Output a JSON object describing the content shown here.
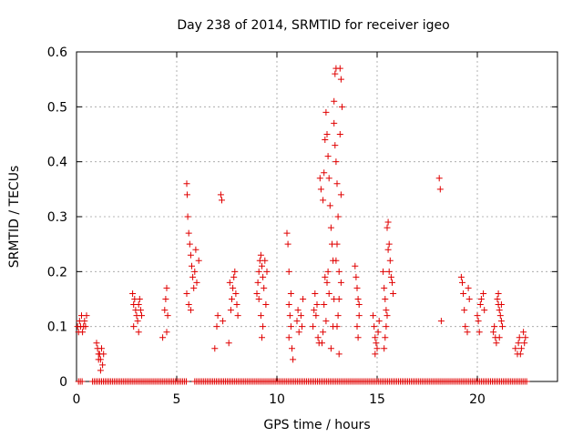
{
  "chart_data": {
    "type": "scatter",
    "title": "Day 238 of 2014, SRMTID for receiver igeo",
    "xlabel": "GPS time / hours",
    "ylabel": "SRMTID / TECUs",
    "xlim": [
      0,
      24
    ],
    "ylim": [
      0,
      0.6
    ],
    "xticks": [
      0,
      5,
      10,
      15,
      20
    ],
    "yticks": [
      0,
      0.1,
      0.2,
      0.3,
      0.4,
      0.5,
      0.6
    ],
    "xtick_labels": [
      "0",
      "5",
      "10",
      "15",
      "20"
    ],
    "ytick_labels": [
      "0",
      "0.1",
      "0.2",
      "0.3",
      "0.4",
      "0.5",
      "0.6"
    ],
    "grid": true,
    "marker": "plus",
    "color": "#e00000",
    "series": [
      {
        "name": "SRMTID",
        "points": [
          [
            0.05,
            0.1
          ],
          [
            0.1,
            0.09
          ],
          [
            0.15,
            0.11
          ],
          [
            0.2,
            0.1
          ],
          [
            0.25,
            0.12
          ],
          [
            0.3,
            0.09
          ],
          [
            0.35,
            0.1
          ],
          [
            0.4,
            0.11
          ],
          [
            0.45,
            0.1
          ],
          [
            0.5,
            0.12
          ],
          [
            1.0,
            0.07
          ],
          [
            1.05,
            0.06
          ],
          [
            1.1,
            0.05
          ],
          [
            1.15,
            0.05
          ],
          [
            1.2,
            0.04
          ],
          [
            1.25,
            0.06
          ],
          [
            1.3,
            0.03
          ],
          [
            1.35,
            0.05
          ],
          [
            1.2,
            0.02
          ],
          [
            1.1,
            0.04
          ],
          [
            2.8,
            0.16
          ],
          [
            2.85,
            0.14
          ],
          [
            2.9,
            0.15
          ],
          [
            2.95,
            0.13
          ],
          [
            3.0,
            0.12
          ],
          [
            3.05,
            0.11
          ],
          [
            3.1,
            0.14
          ],
          [
            3.15,
            0.15
          ],
          [
            3.2,
            0.13
          ],
          [
            3.25,
            0.12
          ],
          [
            2.85,
            0.1
          ],
          [
            3.1,
            0.09
          ],
          [
            4.3,
            0.08
          ],
          [
            4.4,
            0.13
          ],
          [
            4.45,
            0.15
          ],
          [
            4.5,
            0.17
          ],
          [
            4.5,
            0.09
          ],
          [
            4.55,
            0.12
          ],
          [
            5.5,
            0.36
          ],
          [
            5.52,
            0.34
          ],
          [
            5.55,
            0.3
          ],
          [
            5.6,
            0.27
          ],
          [
            5.65,
            0.25
          ],
          [
            5.7,
            0.23
          ],
          [
            5.75,
            0.21
          ],
          [
            5.8,
            0.19
          ],
          [
            5.85,
            0.17
          ],
          [
            5.6,
            0.14
          ],
          [
            5.7,
            0.13
          ],
          [
            5.5,
            0.16
          ],
          [
            5.9,
            0.2
          ],
          [
            6.0,
            0.18
          ],
          [
            6.1,
            0.22
          ],
          [
            5.95,
            0.24
          ],
          [
            6.9,
            0.06
          ],
          [
            7.0,
            0.1
          ],
          [
            7.05,
            0.12
          ],
          [
            7.2,
            0.34
          ],
          [
            7.25,
            0.33
          ],
          [
            7.3,
            0.11
          ],
          [
            7.6,
            0.07
          ],
          [
            7.7,
            0.13
          ],
          [
            7.75,
            0.15
          ],
          [
            7.8,
            0.17
          ],
          [
            7.85,
            0.19
          ],
          [
            7.9,
            0.2
          ],
          [
            7.95,
            0.16
          ],
          [
            8.0,
            0.14
          ],
          [
            8.05,
            0.12
          ],
          [
            7.65,
            0.18
          ],
          [
            9.0,
            0.16
          ],
          [
            9.05,
            0.18
          ],
          [
            9.1,
            0.2
          ],
          [
            9.15,
            0.22
          ],
          [
            9.2,
            0.23
          ],
          [
            9.25,
            0.21
          ],
          [
            9.3,
            0.19
          ],
          [
            9.35,
            0.17
          ],
          [
            9.4,
            0.22
          ],
          [
            9.45,
            0.14
          ],
          [
            9.3,
            0.1
          ],
          [
            9.25,
            0.08
          ],
          [
            9.2,
            0.12
          ],
          [
            9.1,
            0.15
          ],
          [
            9.5,
            0.2
          ],
          [
            10.5,
            0.27
          ],
          [
            10.55,
            0.25
          ],
          [
            10.6,
            0.2
          ],
          [
            10.6,
            0.14
          ],
          [
            10.65,
            0.12
          ],
          [
            10.7,
            0.1
          ],
          [
            10.75,
            0.06
          ],
          [
            10.8,
            0.04
          ],
          [
            10.6,
            0.08
          ],
          [
            10.7,
            0.16
          ],
          [
            11.0,
            0.11
          ],
          [
            11.05,
            0.13
          ],
          [
            11.1,
            0.09
          ],
          [
            11.2,
            0.12
          ],
          [
            11.25,
            0.1
          ],
          [
            11.3,
            0.15
          ],
          [
            11.8,
            0.1
          ],
          [
            11.85,
            0.13
          ],
          [
            11.9,
            0.16
          ],
          [
            11.95,
            0.12
          ],
          [
            12.0,
            0.14
          ],
          [
            12.05,
            0.08
          ],
          [
            12.1,
            0.07
          ],
          [
            12.15,
            0.37
          ],
          [
            12.2,
            0.35
          ],
          [
            12.3,
            0.33
          ],
          [
            12.35,
            0.38
          ],
          [
            12.4,
            0.44
          ],
          [
            12.45,
            0.49
          ],
          [
            12.5,
            0.45
          ],
          [
            12.55,
            0.41
          ],
          [
            12.6,
            0.37
          ],
          [
            12.65,
            0.32
          ],
          [
            12.7,
            0.28
          ],
          [
            12.75,
            0.25
          ],
          [
            12.8,
            0.22
          ],
          [
            12.55,
            0.2
          ],
          [
            12.5,
            0.18
          ],
          [
            12.6,
            0.16
          ],
          [
            12.4,
            0.19
          ],
          [
            12.35,
            0.14
          ],
          [
            12.45,
            0.11
          ],
          [
            12.3,
            0.09
          ],
          [
            12.25,
            0.07
          ],
          [
            12.7,
            0.06
          ],
          [
            12.8,
            0.1
          ],
          [
            12.85,
            0.15
          ],
          [
            12.85,
            0.51
          ],
          [
            12.9,
            0.56
          ],
          [
            12.95,
            0.57
          ],
          [
            12.85,
            0.47
          ],
          [
            12.9,
            0.43
          ],
          [
            12.95,
            0.4
          ],
          [
            13.0,
            0.36
          ],
          [
            13.05,
            0.3
          ],
          [
            13.0,
            0.25
          ],
          [
            12.95,
            0.22
          ],
          [
            13.1,
            0.2
          ],
          [
            13.15,
            0.57
          ],
          [
            13.2,
            0.55
          ],
          [
            13.25,
            0.5
          ],
          [
            13.15,
            0.45
          ],
          [
            13.2,
            0.34
          ],
          [
            13.1,
            0.15
          ],
          [
            13.05,
            0.12
          ],
          [
            13.0,
            0.1
          ],
          [
            13.1,
            0.05
          ],
          [
            13.2,
            0.18
          ],
          [
            13.9,
            0.21
          ],
          [
            13.95,
            0.19
          ],
          [
            14.0,
            0.17
          ],
          [
            14.05,
            0.15
          ],
          [
            14.1,
            0.12
          ],
          [
            14.0,
            0.1
          ],
          [
            14.05,
            0.08
          ],
          [
            14.1,
            0.14
          ],
          [
            14.8,
            0.12
          ],
          [
            14.85,
            0.1
          ],
          [
            14.9,
            0.08
          ],
          [
            14.95,
            0.07
          ],
          [
            15.0,
            0.06
          ],
          [
            15.05,
            0.09
          ],
          [
            15.1,
            0.11
          ],
          [
            14.9,
            0.05
          ],
          [
            15.3,
            0.2
          ],
          [
            15.35,
            0.17
          ],
          [
            15.4,
            0.15
          ],
          [
            15.45,
            0.13
          ],
          [
            15.5,
            0.28
          ],
          [
            15.55,
            0.29
          ],
          [
            15.6,
            0.25
          ],
          [
            15.65,
            0.22
          ],
          [
            15.7,
            0.19
          ],
          [
            15.75,
            0.18
          ],
          [
            15.8,
            0.16
          ],
          [
            15.5,
            0.12
          ],
          [
            15.45,
            0.1
          ],
          [
            15.4,
            0.08
          ],
          [
            15.35,
            0.06
          ],
          [
            15.6,
            0.2
          ],
          [
            15.55,
            0.24
          ],
          [
            18.1,
            0.37
          ],
          [
            18.15,
            0.35
          ],
          [
            18.2,
            0.11
          ],
          [
            19.2,
            0.19
          ],
          [
            19.25,
            0.18
          ],
          [
            19.3,
            0.16
          ],
          [
            19.35,
            0.13
          ],
          [
            19.4,
            0.1
          ],
          [
            19.5,
            0.09
          ],
          [
            19.55,
            0.17
          ],
          [
            19.6,
            0.15
          ],
          [
            20.0,
            0.12
          ],
          [
            20.05,
            0.11
          ],
          [
            20.1,
            0.09
          ],
          [
            20.15,
            0.14
          ],
          [
            20.2,
            0.15
          ],
          [
            20.3,
            0.16
          ],
          [
            20.35,
            0.13
          ],
          [
            20.8,
            0.09
          ],
          [
            20.85,
            0.1
          ],
          [
            20.9,
            0.08
          ],
          [
            20.95,
            0.07
          ],
          [
            21.0,
            0.15
          ],
          [
            21.05,
            0.14
          ],
          [
            21.1,
            0.13
          ],
          [
            21.15,
            0.12
          ],
          [
            21.2,
            0.11
          ],
          [
            21.25,
            0.1
          ],
          [
            21.05,
            0.16
          ],
          [
            21.1,
            0.08
          ],
          [
            21.2,
            0.14
          ],
          [
            21.9,
            0.06
          ],
          [
            22.0,
            0.05
          ],
          [
            22.05,
            0.07
          ],
          [
            22.1,
            0.08
          ],
          [
            22.15,
            0.05
          ],
          [
            22.2,
            0.06
          ],
          [
            22.3,
            0.09
          ],
          [
            22.35,
            0.07
          ],
          [
            22.4,
            0.08
          ]
        ],
        "zero_segments": [
          [
            0.1,
            0.3
          ],
          [
            0.8,
            5.5
          ],
          [
            5.9,
            22.5
          ]
        ]
      }
    ]
  }
}
